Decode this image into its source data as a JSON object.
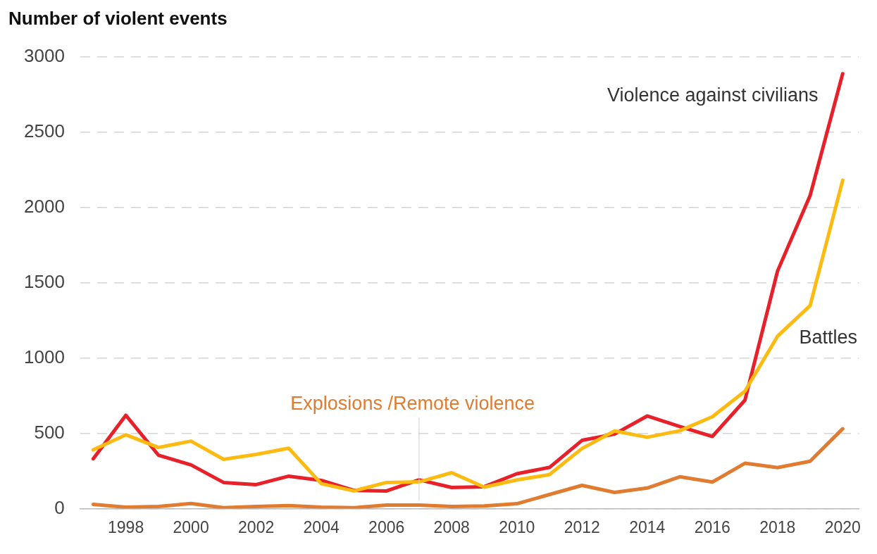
{
  "chart_data": {
    "type": "line",
    "title": "Number of violent events",
    "x": [
      1997,
      1998,
      1999,
      2000,
      2001,
      2002,
      2003,
      2004,
      2005,
      2006,
      2007,
      2008,
      2009,
      2010,
      2011,
      2012,
      2013,
      2014,
      2015,
      2016,
      2017,
      2018,
      2019,
      2020
    ],
    "series": [
      {
        "name": "Battles",
        "color": "#fdbb12",
        "values": [
          390,
          490,
          406,
          448,
          327,
          360,
          401,
          165,
          117,
          173,
          177,
          238,
          142,
          190,
          225,
          399,
          515,
          474,
          517,
          610,
          780,
          1145,
          1349,
          2182
        ]
      },
      {
        "name": "Explosions /Remote violence",
        "color": "#e07b30",
        "values": [
          28,
          9,
          14,
          33,
          5,
          14,
          19,
          9,
          5,
          23,
          23,
          14,
          17,
          32,
          93,
          154,
          107,
          136,
          211,
          176,
          301,
          272,
          314,
          530
        ]
      },
      {
        "name": "Violence against civilians",
        "color": "#e8202a",
        "values": [
          331,
          620,
          355,
          290,
          173,
          159,
          215,
          187,
          121,
          117,
          191,
          140,
          145,
          231,
          273,
          453,
          495,
          615,
          545,
          479,
          720,
          1578,
          2080,
          2890
        ]
      }
    ],
    "xlim": [
      1996.6,
      2020.5
    ],
    "xticks": [
      1998,
      2000,
      2002,
      2004,
      2006,
      2008,
      2010,
      2012,
      2014,
      2016,
      2018,
      2020
    ],
    "ylim": [
      0,
      3000
    ],
    "yticks": [
      0,
      500,
      1000,
      1500,
      2000,
      2500,
      3000
    ],
    "grid": "y",
    "legend": false,
    "marker": "none",
    "line_style": "solid"
  }
}
